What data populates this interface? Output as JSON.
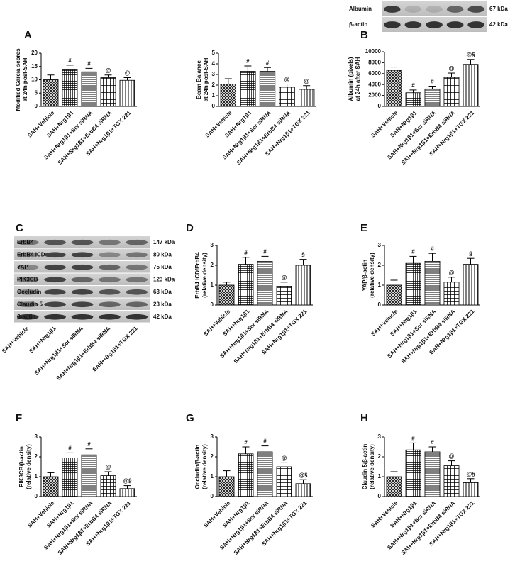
{
  "panel_labels": [
    "A",
    "B",
    "C",
    "D",
    "E",
    "F",
    "G",
    "H"
  ],
  "blot_albumin": {
    "rows": [
      {
        "label": "Albumin",
        "size": "67 kDa"
      },
      {
        "label": "β-actin",
        "size": "42 kDa"
      }
    ]
  },
  "blot_c": {
    "rows": [
      {
        "label": "ErbB4",
        "size": "147 kDa"
      },
      {
        "label": "ErbB4 ICD",
        "size": "80 kDa"
      },
      {
        "label": "YAP",
        "size": "75 kDa"
      },
      {
        "label": "PIK3CB",
        "size": "123 kDa"
      },
      {
        "label": "Occludin",
        "size": "63 kDa"
      },
      {
        "label": "Claudin 5",
        "size": "23 kDa"
      },
      {
        "label": "β-actin",
        "size": "42 kDa"
      }
    ],
    "categories": [
      "SAH+Vehicle",
      "SAH+Nrg1β1",
      "SAH+Nrg1β1+Scr siRNA",
      "SAH+Nrg1β1+ErbB4 siRNA",
      "SAH+Nrg1β1+TGX 221"
    ]
  },
  "chart_data": [
    {
      "type": "bar",
      "ylabel": [
        "Modified Garcia scores",
        "at 24h post-SAH"
      ],
      "categories": [
        "SAH+Vehicle",
        "SAH+Nrg1β1",
        "SAH+Nrg1β1+Scr siRNA",
        "SAH+Nrg1β1+ErbB4 siRNA",
        "SAH+Nrg1β1+TGX 221"
      ],
      "values": [
        10,
        14,
        13,
        10.8,
        9.8
      ],
      "errors": [
        1.8,
        1.5,
        1.3,
        1,
        1
      ],
      "annotations": [
        null,
        "#",
        "#",
        "@",
        "@"
      ],
      "ylim": [
        0,
        20
      ],
      "yticks": [
        0,
        5,
        10,
        15,
        20
      ]
    },
    {
      "type": "bar",
      "ylabel": [
        "Beam Balance",
        "at 24h post-SAH"
      ],
      "categories": [
        "SAH+Vehicle",
        "SAH+Nrg1β1",
        "SAH+Nrg1β1+Scr siRNA",
        "SAH+Nrg1β1+ErbB4 siRNA",
        "SAH+Nrg1β1+TGX 221"
      ],
      "values": [
        2.1,
        3.3,
        3.3,
        1.8,
        1.6
      ],
      "errors": [
        0.5,
        0.5,
        0.35,
        0.3,
        0.35
      ],
      "annotations": [
        null,
        "#",
        "#",
        "@",
        "@"
      ],
      "ylim": [
        0,
        5
      ],
      "yticks": [
        0,
        1,
        2,
        3,
        4,
        5
      ]
    },
    {
      "type": "bar",
      "ylabel": [
        "Albumin (pixels)",
        "at 24h after SAH"
      ],
      "categories": [
        "SAH+Vehicle",
        "SAH+Nrg1β1",
        "SAH+Nrg1β1+Scr siRNA",
        "SAH+Nrg1β1+ErbB4 siRNA",
        "SAH+Nrg1β1+TGX 221"
      ],
      "values": [
        6600,
        2500,
        3200,
        5300,
        7700
      ],
      "errors": [
        600,
        500,
        500,
        800,
        900
      ],
      "annotations": [
        null,
        "#",
        "#",
        "@",
        "@§"
      ],
      "ylim": [
        0,
        10000
      ],
      "yticks": [
        0,
        2000,
        4000,
        6000,
        8000,
        10000
      ]
    },
    {
      "type": "bar",
      "ylabel": [
        "ErbB4 ICD/ErbB4",
        "(relative density)"
      ],
      "categories": [
        "SAH+Vehicle",
        "SAH+Nrg1β1",
        "SAH+Nrg1β1+Scr siRNA",
        "SAH+Nrg1β1+ErbB4 siRNA",
        "SAH+Nrg1β1+TGX 221"
      ],
      "values": [
        1.0,
        2.05,
        2.2,
        0.95,
        2.0
      ],
      "errors": [
        0.15,
        0.35,
        0.25,
        0.2,
        0.3
      ],
      "annotations": [
        null,
        "#",
        "#",
        "@",
        "§"
      ],
      "ylim": [
        0,
        3
      ],
      "yticks": [
        0,
        1,
        2,
        3
      ]
    },
    {
      "type": "bar",
      "ylabel": [
        "YAP/β-actin",
        "(relative density)"
      ],
      "categories": [
        "SAH+Vehicle",
        "SAH+Nrg1β1",
        "SAH+Nrg1β1+Scr siRNA",
        "SAH+Nrg1β1+ErbB4 siRNA",
        "SAH+Nrg1β1+TGX 221"
      ],
      "values": [
        1.0,
        2.1,
        2.2,
        1.15,
        2.05
      ],
      "errors": [
        0.25,
        0.35,
        0.4,
        0.25,
        0.3
      ],
      "annotations": [
        null,
        "#",
        "#",
        "@",
        "§"
      ],
      "ylim": [
        0,
        3
      ],
      "yticks": [
        0,
        1,
        2,
        3
      ]
    },
    {
      "type": "bar",
      "ylabel": [
        "PIK3CB/β-actin",
        "(relative density)"
      ],
      "categories": [
        "SAH+Vehicle",
        "SAH+Nrg1β1",
        "SAH+Nrg1β1+Scr siRNA",
        "SAH+Nrg1β1+ErbB4 siRNA",
        "SAH+Nrg1β1+TGX 221"
      ],
      "values": [
        1.0,
        1.95,
        2.1,
        1.05,
        0.4
      ],
      "errors": [
        0.2,
        0.25,
        0.3,
        0.2,
        0.15
      ],
      "annotations": [
        null,
        "#",
        "#",
        "@",
        "@§"
      ],
      "ylim": [
        0,
        3
      ],
      "yticks": [
        0,
        1,
        2,
        3
      ]
    },
    {
      "type": "bar",
      "ylabel": [
        "Occludin/β-actin",
        "(relative density)"
      ],
      "categories": [
        "SAH+Vehicle",
        "SAH+Nrg1β1",
        "SAH+Nrg1β1+Scr siRNA",
        "SAH+Nrg1β1+ErbB4 siRNA",
        "SAH+Nrg1β1+TGX 221"
      ],
      "values": [
        1.0,
        2.15,
        2.25,
        1.5,
        0.65
      ],
      "errors": [
        0.3,
        0.35,
        0.3,
        0.2,
        0.2
      ],
      "annotations": [
        null,
        "#",
        "#",
        "@",
        "@§"
      ],
      "ylim": [
        0,
        3
      ],
      "yticks": [
        0,
        1,
        2,
        3
      ]
    },
    {
      "type": "bar",
      "ylabel": [
        "Claudin 5/β-actin",
        "(relative density)"
      ],
      "categories": [
        "SAH+Vehicle",
        "SAH+Nrg1β1",
        "SAH+Nrg1β1+Scr siRNA",
        "SAH+Nrg1β1+ErbB4 siRNA",
        "SAH+Nrg1β1+TGX 221"
      ],
      "values": [
        1.0,
        2.35,
        2.25,
        1.55,
        0.7
      ],
      "errors": [
        0.25,
        0.35,
        0.25,
        0.25,
        0.2
      ],
      "annotations": [
        null,
        "#",
        "#",
        "@",
        "@§"
      ],
      "ylim": [
        0,
        3
      ],
      "yticks": [
        0,
        1,
        2,
        3
      ]
    }
  ]
}
